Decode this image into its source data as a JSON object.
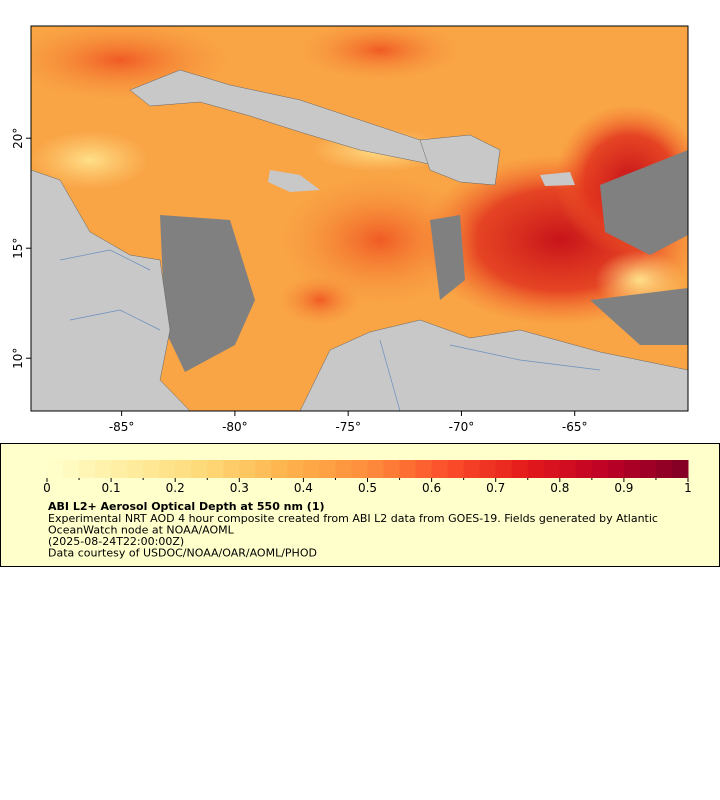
{
  "map": {
    "xlim": [
      -89,
      -60
    ],
    "ylim": [
      7.6,
      25.1
    ],
    "xticks": [
      {
        "value": -85,
        "label": "-85°"
      },
      {
        "value": -80,
        "label": "-80°"
      },
      {
        "value": -75,
        "label": "-75°"
      },
      {
        "value": -70,
        "label": "-70°"
      },
      {
        "value": -65,
        "label": "-65°"
      }
    ],
    "yticks": [
      {
        "value": 10,
        "label": "10°"
      },
      {
        "value": 15,
        "label": "15°"
      },
      {
        "value": 20,
        "label": "20°"
      }
    ]
  },
  "legend": {
    "colorbar": {
      "lim": [
        0,
        1
      ],
      "ticks": [
        0,
        0.1,
        0.2,
        0.3,
        0.4,
        0.5,
        0.6,
        0.7,
        0.8,
        0.9,
        1
      ],
      "colors": [
        "#ffffcc",
        "#ffeda0",
        "#fed976",
        "#feb24c",
        "#fd8d3c",
        "#fc4e2a",
        "#e31a1c",
        "#bd0026",
        "#800026"
      ]
    },
    "title": "ABI L2+ Aerosol Optical Depth at 550 nm (1)",
    "lines": [
      "Experimental NRT AOD 4 hour composite created from ABI L2 data from GOES-19. Fields generated by Atlantic",
      "OceanWatch node at NOAA/AOML",
      "(2025-08-24T22:00:00Z)",
      "Data courtesy of USDOC/NOAA/OAR/AOML/PHOD"
    ]
  }
}
